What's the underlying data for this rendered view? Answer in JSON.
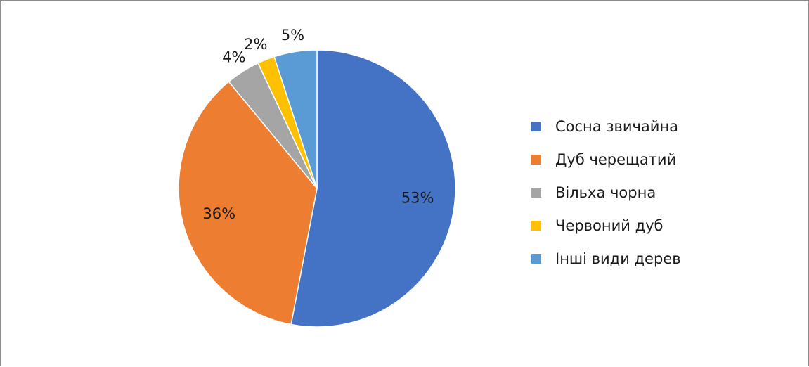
{
  "chart_data": {
    "type": "pie",
    "title": "",
    "legend_position": "right",
    "slices": [
      {
        "label": "Сосна звичайна",
        "value": 53,
        "display": "53%",
        "color": "#4472C4"
      },
      {
        "label": "Дуб черещатий",
        "value": 36,
        "display": "36%",
        "color": "#ED7D31"
      },
      {
        "label": "Вільха чорна",
        "value": 4,
        "display": "4%",
        "color": "#A5A5A5"
      },
      {
        "label": "Червоний дуб",
        "value": 2,
        "display": "2%",
        "color": "#FFC000"
      },
      {
        "label": "Інші види дерев",
        "value": 5,
        "display": "5%",
        "color": "#5B9BD5"
      }
    ]
  }
}
